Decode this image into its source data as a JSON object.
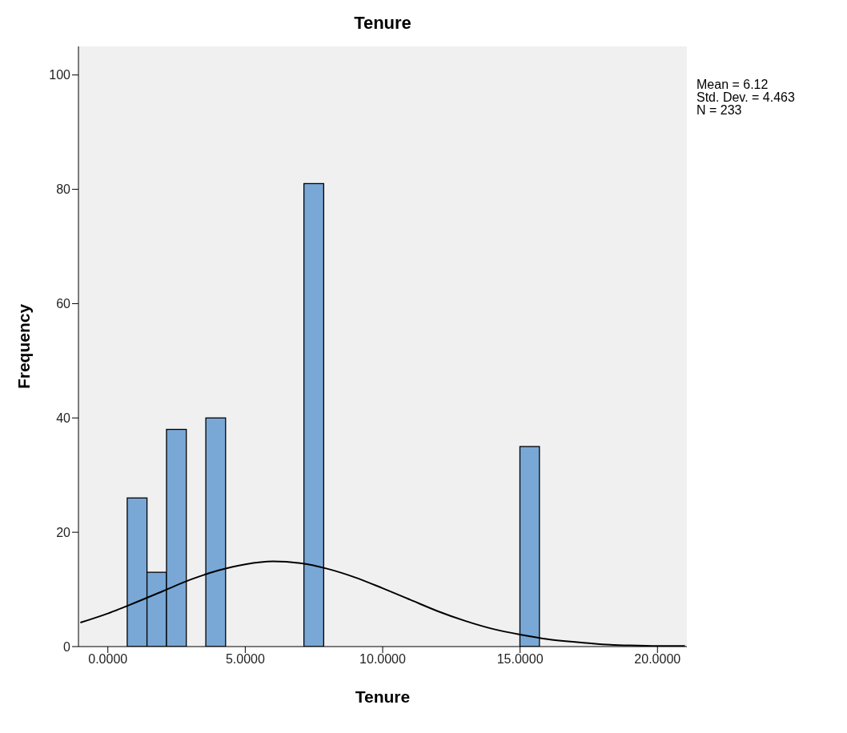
{
  "chart_data": {
    "type": "histogram",
    "title": "Tenure",
    "xlabel": "Tenure",
    "ylabel": "Frequency",
    "bins": [
      0.71,
      1.43,
      2.14,
      2.86,
      3.57,
      4.29,
      5.0,
      5.71,
      6.43,
      7.14,
      7.86,
      8.57,
      9.29,
      10.0,
      10.71,
      11.43,
      12.14,
      12.86,
      13.57,
      14.29,
      15.0,
      15.71
    ],
    "values": [
      26,
      13,
      38,
      0,
      40,
      0,
      0,
      0,
      0,
      81,
      0,
      0,
      0,
      0,
      0,
      0,
      0,
      0,
      0,
      0,
      35
    ],
    "color": "#79a8d6",
    "series": [
      {
        "type": "line",
        "color": "#000000",
        "x": [
          -1,
          0,
          1,
          2,
          3,
          4,
          5,
          6,
          7,
          8,
          9,
          10,
          11,
          12,
          13,
          14,
          15,
          16,
          17,
          18,
          19,
          20,
          21
        ],
        "values": [
          4.2,
          5.8,
          7.7,
          9.7,
          11.7,
          13.3,
          14.4,
          14.9,
          14.6,
          13.6,
          12.1,
          10.2,
          8.2,
          6.2,
          4.5,
          3.1,
          2.1,
          1.3,
          0.8,
          0.4,
          0.2,
          0.1,
          0.1
        ]
      }
    ],
    "xlim": [
      -1.07,
      21.07
    ],
    "xticks": [
      {
        "value": 0,
        "label": "0.0000"
      },
      {
        "value": 5,
        "label": "5.0000"
      },
      {
        "value": 10,
        "label": "10.0000"
      },
      {
        "value": 15,
        "label": "15.0000"
      },
      {
        "value": 20,
        "label": "20.0000"
      }
    ],
    "ylim": [
      0,
      105
    ],
    "yticks": [
      0,
      20,
      40,
      60,
      80,
      100
    ],
    "annotations": [
      "Mean = 6.12",
      "Std. Dev. = 4.463",
      "N = 233"
    ]
  }
}
